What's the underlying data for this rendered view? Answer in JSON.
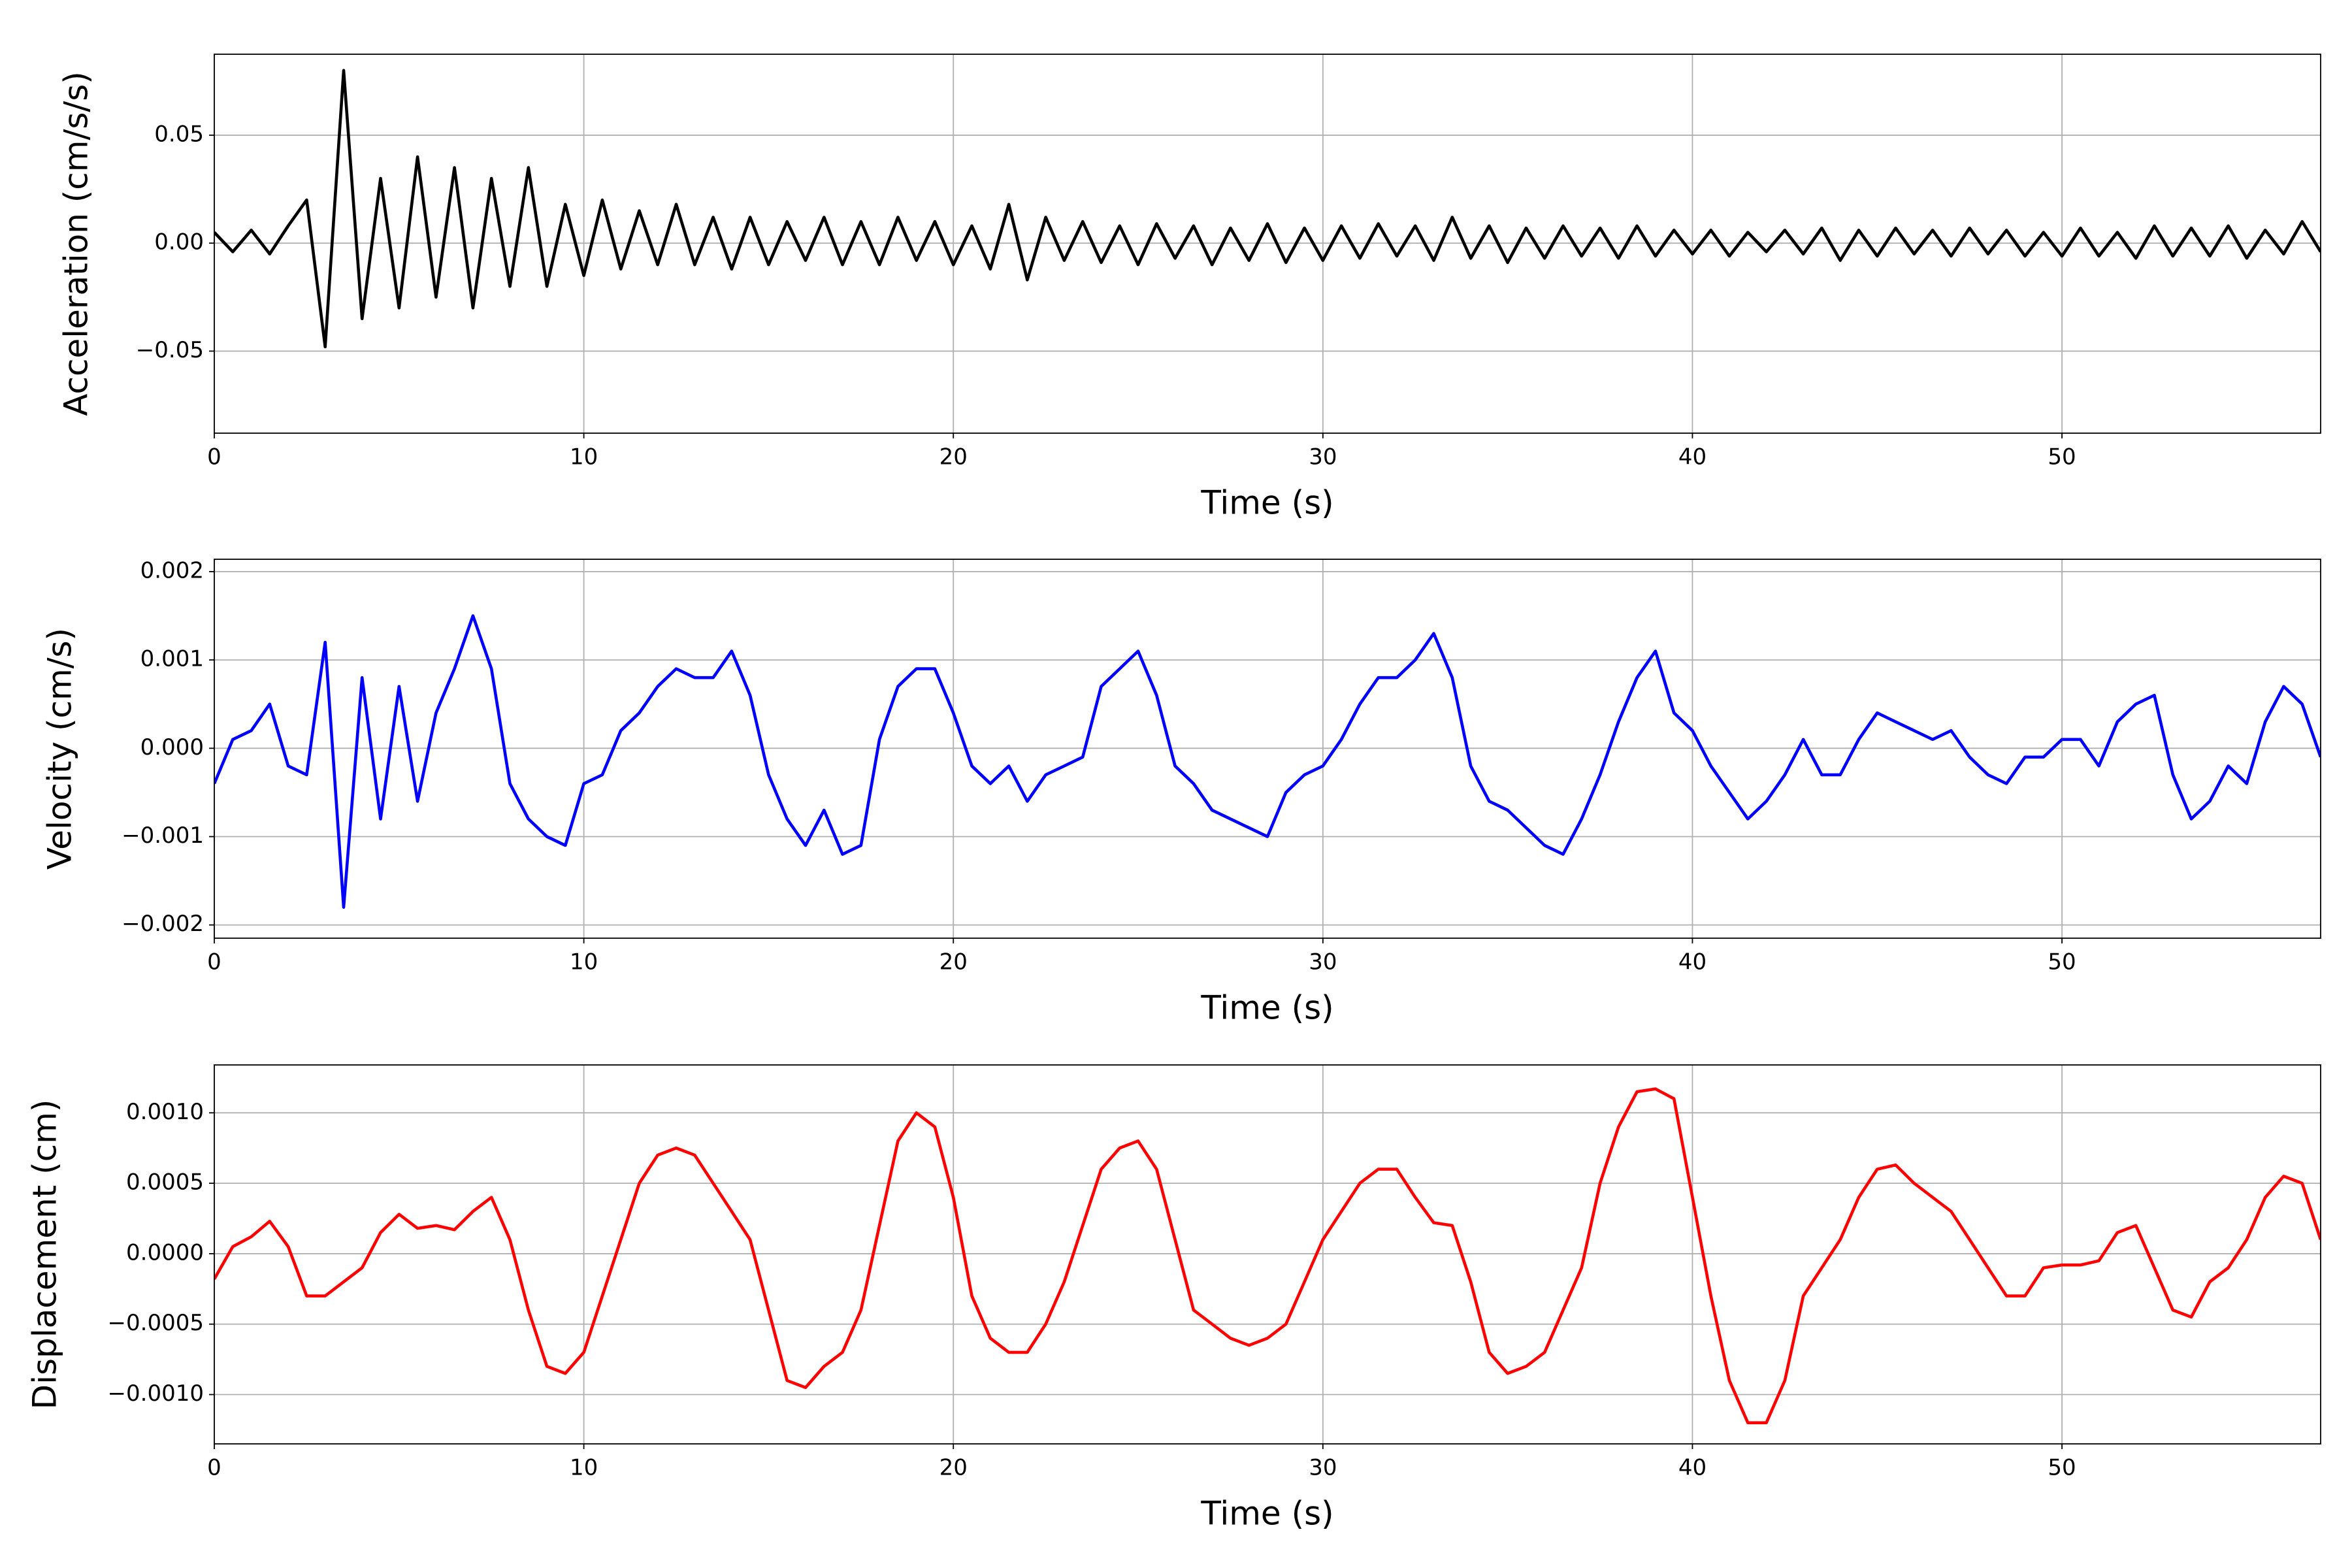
{
  "chart_data": [
    {
      "type": "line",
      "xlabel": "Time (s)",
      "ylabel": "Acceleration (cm/s/s)",
      "color": "#000000",
      "grid": true,
      "xlim": [
        0,
        57
      ],
      "xticks": [
        0,
        10,
        20,
        30,
        40,
        50
      ],
      "ylim": [
        -0.088,
        0.0875
      ],
      "yticks": [
        {
          "value": -0.05,
          "label": "−0.05"
        },
        {
          "value": 0,
          "label": "0.00"
        },
        {
          "value": 0.05,
          "label": "0.05"
        }
      ],
      "x": [
        0,
        0.5,
        1,
        1.5,
        2,
        2.5,
        3,
        3.5,
        4,
        4.5,
        5,
        5.5,
        6,
        6.5,
        7,
        7.5,
        8,
        8.5,
        9,
        9.5,
        10,
        10.5,
        11,
        11.5,
        12,
        12.5,
        13,
        13.5,
        14,
        14.5,
        15,
        15.5,
        16,
        16.5,
        17,
        17.5,
        18,
        18.5,
        19,
        19.5,
        20,
        20.5,
        21,
        21.5,
        22,
        22.5,
        23,
        23.5,
        24,
        24.5,
        25,
        25.5,
        26,
        26.5,
        27,
        27.5,
        28,
        28.5,
        29,
        29.5,
        30,
        30.5,
        31,
        31.5,
        32,
        32.5,
        33,
        33.5,
        34,
        34.5,
        35,
        35.5,
        36,
        36.5,
        37,
        37.5,
        38,
        38.5,
        39,
        39.5,
        40,
        40.5,
        41,
        41.5,
        42,
        42.5,
        43,
        43.5,
        44,
        44.5,
        45,
        45.5,
        46,
        46.5,
        47,
        47.5,
        48,
        48.5,
        49,
        49.5,
        50,
        50.5,
        51,
        51.5,
        52,
        52.5,
        53,
        53.5,
        54,
        54.5,
        55,
        55.5,
        56,
        56.5,
        57
      ],
      "values": [
        0.005,
        -0.004,
        0.006,
        -0.005,
        0.008,
        0.02,
        -0.048,
        0.08,
        -0.035,
        0.03,
        -0.03,
        0.04,
        -0.025,
        0.035,
        -0.03,
        0.03,
        -0.02,
        0.035,
        -0.02,
        0.018,
        -0.015,
        0.02,
        -0.012,
        0.015,
        -0.01,
        0.018,
        -0.01,
        0.012,
        -0.012,
        0.012,
        -0.01,
        0.01,
        -0.008,
        0.012,
        -0.01,
        0.01,
        -0.01,
        0.012,
        -0.008,
        0.01,
        -0.01,
        0.008,
        -0.012,
        0.018,
        -0.017,
        0.012,
        -0.008,
        0.01,
        -0.009,
        0.008,
        -0.01,
        0.009,
        -0.007,
        0.008,
        -0.01,
        0.007,
        -0.008,
        0.009,
        -0.009,
        0.007,
        -0.008,
        0.008,
        -0.007,
        0.009,
        -0.006,
        0.008,
        -0.008,
        0.012,
        -0.007,
        0.008,
        -0.009,
        0.007,
        -0.007,
        0.008,
        -0.006,
        0.007,
        -0.007,
        0.008,
        -0.006,
        0.006,
        -0.005,
        0.006,
        -0.006,
        0.005,
        -0.004,
        0.006,
        -0.005,
        0.007,
        -0.008,
        0.006,
        -0.006,
        0.007,
        -0.005,
        0.006,
        -0.006,
        0.007,
        -0.005,
        0.006,
        -0.006,
        0.005,
        -0.006,
        0.007,
        -0.006,
        0.005,
        -0.007,
        0.008,
        -0.006,
        0.007,
        -0.006,
        0.008,
        -0.007,
        0.006,
        -0.005,
        0.01,
        -0.004
      ]
    },
    {
      "type": "line",
      "xlabel": "Time (s)",
      "ylabel": "Velocity (cm/s)",
      "color": "#0000ff",
      "grid": true,
      "xlim": [
        0,
        57
      ],
      "xticks": [
        0,
        10,
        20,
        30,
        40,
        50
      ],
      "ylim": [
        -0.00215,
        0.00214
      ],
      "yticks": [
        {
          "value": -0.002,
          "label": "−0.002"
        },
        {
          "value": -0.001,
          "label": "−0.001"
        },
        {
          "value": 0,
          "label": "0.000"
        },
        {
          "value": 0.001,
          "label": "0.001"
        },
        {
          "value": 0.002,
          "label": "0.002"
        }
      ],
      "x": [
        0,
        0.5,
        1,
        1.5,
        2,
        2.5,
        3,
        3.5,
        4,
        4.5,
        5,
        5.5,
        6,
        6.5,
        7,
        7.5,
        8,
        8.5,
        9,
        9.5,
        10,
        10.5,
        11,
        11.5,
        12,
        12.5,
        13,
        13.5,
        14,
        14.5,
        15,
        15.5,
        16,
        16.5,
        17,
        17.5,
        18,
        18.5,
        19,
        19.5,
        20,
        20.5,
        21,
        21.5,
        22,
        22.5,
        23,
        23.5,
        24,
        24.5,
        25,
        25.5,
        26,
        26.5,
        27,
        27.5,
        28,
        28.5,
        29,
        29.5,
        30,
        30.5,
        31,
        31.5,
        32,
        32.5,
        33,
        33.5,
        34,
        34.5,
        35,
        35.5,
        36,
        36.5,
        37,
        37.5,
        38,
        38.5,
        39,
        39.5,
        40,
        40.5,
        41,
        41.5,
        42,
        42.5,
        43,
        43.5,
        44,
        44.5,
        45,
        45.5,
        46,
        46.5,
        47,
        47.5,
        48,
        48.5,
        49,
        49.5,
        50,
        50.5,
        51,
        51.5,
        52,
        52.5,
        53,
        53.5,
        54,
        54.5,
        55,
        55.5,
        56,
        56.5,
        57
      ],
      "values": [
        -0.0004,
        0.0001,
        0.0002,
        0.0005,
        -0.0002,
        -0.0003,
        0.0012,
        -0.0018,
        0.0008,
        -0.0008,
        0.0007,
        -0.0006,
        0.0004,
        0.0009,
        0.0015,
        0.0009,
        -0.0004,
        -0.0008,
        -0.001,
        -0.0011,
        -0.0004,
        -0.0003,
        0.0002,
        0.0004,
        0.0007,
        0.0009,
        0.0008,
        0.0008,
        0.0011,
        0.0006,
        -0.0003,
        -0.0008,
        -0.0011,
        -0.0007,
        -0.0012,
        -0.0011,
        0.0001,
        0.0007,
        0.0009,
        0.0009,
        0.0004,
        -0.0002,
        -0.0004,
        -0.0002,
        -0.0006,
        -0.0003,
        -0.0002,
        -0.0001,
        0.0007,
        0.0009,
        0.0011,
        0.0006,
        -0.0002,
        -0.0004,
        -0.0007,
        -0.0008,
        -0.0009,
        -0.001,
        -0.0005,
        -0.0003,
        -0.0002,
        0.0001,
        0.0005,
        0.0008,
        0.0008,
        0.001,
        0.0013,
        0.0008,
        -0.0002,
        -0.0006,
        -0.0007,
        -0.0009,
        -0.0011,
        -0.0012,
        -0.0008,
        -0.0003,
        0.0003,
        0.0008,
        0.0011,
        0.0004,
        0.0002,
        -0.0002,
        -0.0005,
        -0.0008,
        -0.0006,
        -0.0003,
        0.0001,
        -0.0003,
        -0.0003,
        0.0001,
        0.0004,
        0.0003,
        0.0002,
        0.0001,
        0.0002,
        -0.0001,
        -0.0003,
        -0.0004,
        -0.0001,
        -0.0001,
        0.0001,
        0.0001,
        -0.0002,
        0.0003,
        0.0005,
        0.0006,
        -0.0003,
        -0.0008,
        -0.0006,
        -0.0002,
        -0.0004,
        0.0003,
        0.0007,
        0.0005,
        -0.0001
      ]
    },
    {
      "type": "line",
      "xlabel": "Time (s)",
      "ylabel": "Displacement (cm)",
      "color": "#ff0000",
      "grid": true,
      "xlim": [
        0,
        57
      ],
      "xticks": [
        0,
        10,
        20,
        30,
        40,
        50
      ],
      "ylim": [
        -0.00135,
        0.00134
      ],
      "yticks": [
        {
          "value": -0.001,
          "label": "−0.0010"
        },
        {
          "value": -0.0005,
          "label": "−0.0005"
        },
        {
          "value": 0,
          "label": "0.0000"
        },
        {
          "value": 0.0005,
          "label": "0.0005"
        },
        {
          "value": 0.001,
          "label": "0.0010"
        }
      ],
      "x": [
        0,
        0.5,
        1,
        1.5,
        2,
        2.5,
        3,
        3.5,
        4,
        4.5,
        5,
        5.5,
        6,
        6.5,
        7,
        7.5,
        8,
        8.5,
        9,
        9.5,
        10,
        10.5,
        11,
        11.5,
        12,
        12.5,
        13,
        13.5,
        14,
        14.5,
        15,
        15.5,
        16,
        16.5,
        17,
        17.5,
        18,
        18.5,
        19,
        19.5,
        20,
        20.5,
        21,
        21.5,
        22,
        22.5,
        23,
        23.5,
        24,
        24.5,
        25,
        25.5,
        26,
        26.5,
        27,
        27.5,
        28,
        28.5,
        29,
        29.5,
        30,
        30.5,
        31,
        31.5,
        32,
        32.5,
        33,
        33.5,
        34,
        34.5,
        35,
        35.5,
        36,
        36.5,
        37,
        37.5,
        38,
        38.5,
        39,
        39.5,
        40,
        40.5,
        41,
        41.5,
        42,
        42.5,
        43,
        43.5,
        44,
        44.5,
        45,
        45.5,
        46,
        46.5,
        47,
        47.5,
        48,
        48.5,
        49,
        49.5,
        50,
        50.5,
        51,
        51.5,
        52,
        52.5,
        53,
        53.5,
        54,
        54.5,
        55,
        55.5,
        56,
        56.5,
        57
      ],
      "values": [
        -0.00018,
        5e-05,
        0.00012,
        0.00023,
        5e-05,
        -0.0003,
        -0.0003,
        -0.0002,
        -0.0001,
        0.00015,
        0.00028,
        0.00018,
        0.0002,
        0.00017,
        0.0003,
        0.0004,
        0.0001,
        -0.0004,
        -0.0008,
        -0.00085,
        -0.0007,
        -0.0003,
        0.0001,
        0.0005,
        0.0007,
        0.00075,
        0.0007,
        0.0005,
        0.0003,
        0.0001,
        -0.0004,
        -0.0009,
        -0.00095,
        -0.0008,
        -0.0007,
        -0.0004,
        0.0002,
        0.0008,
        0.001,
        0.0009,
        0.0004,
        -0.0003,
        -0.0006,
        -0.0007,
        -0.0007,
        -0.0005,
        -0.0002,
        0.0002,
        0.0006,
        0.00075,
        0.0008,
        0.0006,
        0.0001,
        -0.0004,
        -0.0005,
        -0.0006,
        -0.00065,
        -0.0006,
        -0.0005,
        -0.0002,
        0.0001,
        0.0003,
        0.0005,
        0.0006,
        0.0006,
        0.0004,
        0.00022,
        0.0002,
        -0.0002,
        -0.0007,
        -0.00085,
        -0.0008,
        -0.0007,
        -0.0004,
        -0.0001,
        0.0005,
        0.0009,
        0.00115,
        0.00117,
        0.0011,
        0.0004,
        -0.0003,
        -0.0009,
        -0.0012,
        -0.0012,
        -0.0009,
        -0.0003,
        -0.0001,
        0.0001,
        0.0004,
        0.0006,
        0.00063,
        0.0005,
        0.0004,
        0.0003,
        0.0001,
        -0.0001,
        -0.0003,
        -0.0003,
        -0.0001,
        -8e-05,
        -8e-05,
        -5e-05,
        0.00015,
        0.0002,
        -0.0001,
        -0.0004,
        -0.00045,
        -0.0002,
        -0.0001,
        0.0001,
        0.0004,
        0.00055,
        0.0005,
        0.0001
      ]
    }
  ]
}
